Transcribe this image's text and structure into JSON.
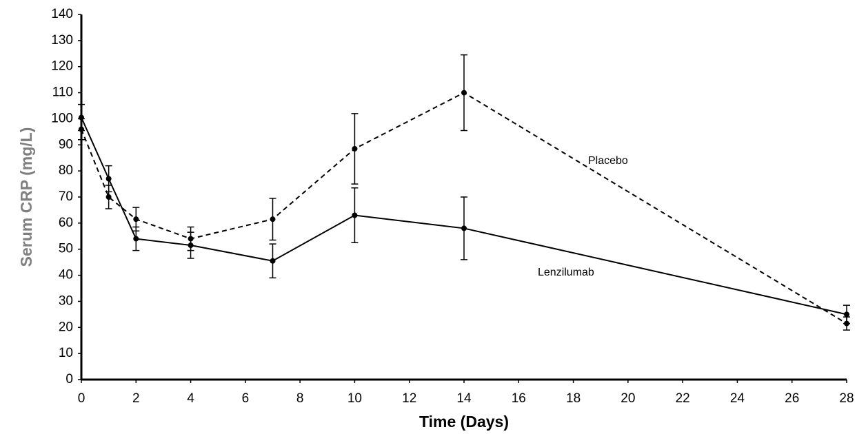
{
  "chart_data": {
    "type": "line",
    "x_label": "Time (Days)",
    "y_label": "Serum CRP (mg/L)",
    "x": [
      0,
      1,
      2,
      4,
      7,
      10,
      14,
      28
    ],
    "series": [
      {
        "name": "Lenzilumab",
        "color": "#000000",
        "line_style": "solid",
        "values": [
          100.5,
          77,
          54,
          51.5,
          45.5,
          63,
          58,
          25
        ],
        "errors": [
          5,
          5,
          4.5,
          5,
          6.5,
          10.5,
          12,
          3.5
        ]
      },
      {
        "name": "Placebo",
        "color": "#000000",
        "line_style": "dashed",
        "values": [
          96,
          70,
          61.5,
          54,
          61.5,
          88.5,
          110,
          21.5
        ],
        "errors": [
          4,
          4.5,
          4.5,
          4.5,
          8,
          13.5,
          14.5,
          2.5
        ]
      }
    ],
    "xlim": [
      0,
      28
    ],
    "xticks": [
      0,
      2,
      4,
      6,
      8,
      10,
      12,
      14,
      16,
      18,
      20,
      22,
      24,
      26,
      28
    ],
    "ylim": [
      0,
      140
    ],
    "yticks": [
      0,
      10,
      20,
      30,
      40,
      50,
      60,
      70,
      80,
      90,
      100,
      110,
      120,
      130,
      140
    ],
    "grid": false
  }
}
